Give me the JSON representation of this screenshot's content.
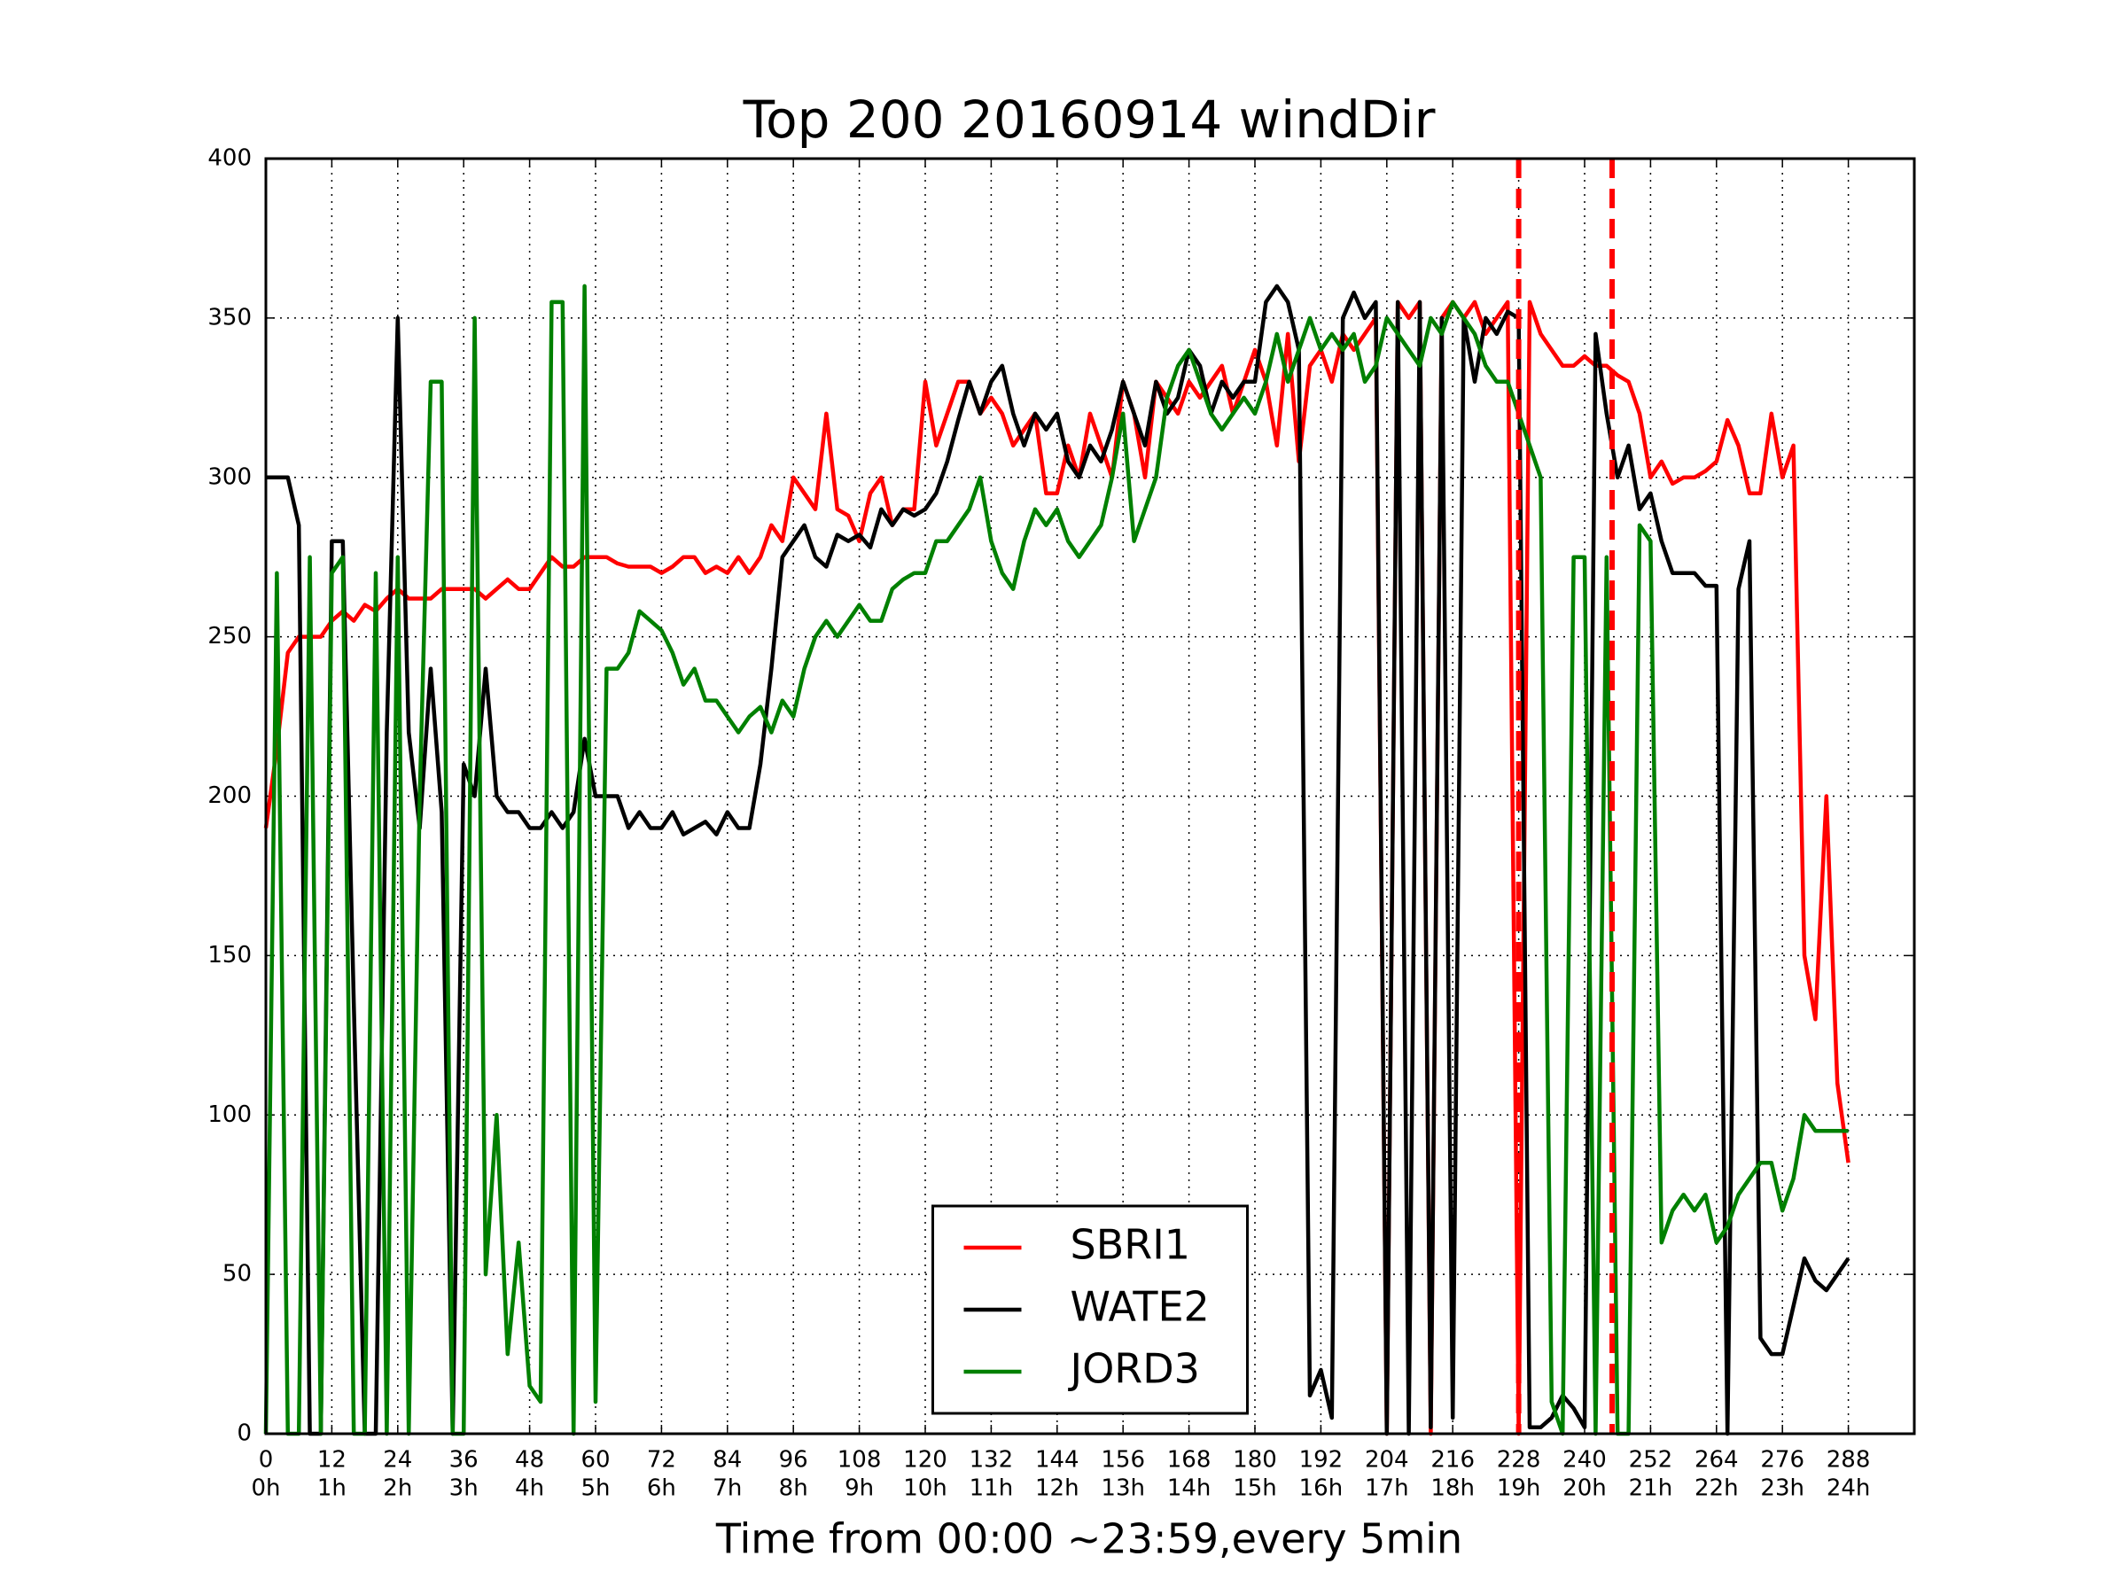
{
  "chart_data": {
    "type": "line",
    "title": "Top 200 20160914 windDir",
    "x_label": "Time from 00:00 ~23:59,every 5min",
    "x": [
      0,
      2,
      4,
      6,
      8,
      10,
      12,
      14,
      16,
      18,
      20,
      22,
      24,
      26,
      28,
      30,
      32,
      34,
      36,
      38,
      40,
      42,
      44,
      46,
      48,
      50,
      52,
      54,
      56,
      58,
      60,
      62,
      64,
      66,
      68,
      70,
      72,
      74,
      76,
      78,
      80,
      82,
      84,
      86,
      88,
      90,
      92,
      94,
      96,
      98,
      100,
      102,
      104,
      106,
      108,
      110,
      112,
      114,
      116,
      118,
      120,
      122,
      124,
      126,
      128,
      130,
      132,
      134,
      136,
      138,
      140,
      142,
      144,
      146,
      148,
      150,
      152,
      154,
      156,
      158,
      160,
      162,
      164,
      166,
      168,
      170,
      172,
      174,
      176,
      178,
      180,
      182,
      184,
      186,
      188,
      190,
      192,
      194,
      196,
      198,
      200,
      202,
      204,
      206,
      208,
      210,
      212,
      214,
      216,
      218,
      220,
      222,
      224,
      226,
      228,
      230,
      232,
      234,
      236,
      238,
      240,
      242,
      244,
      246,
      248,
      250,
      252,
      254,
      256,
      258,
      260,
      262,
      264,
      266,
      268,
      270,
      272,
      274,
      276,
      278,
      280,
      282,
      284,
      286,
      288
    ],
    "series": [
      {
        "name": "SBRI1",
        "color": "#ff0000",
        "values": [
          190,
          215,
          245,
          250,
          250,
          250,
          255,
          258,
          255,
          260,
          258,
          262,
          265,
          262,
          262,
          262,
          265,
          265,
          265,
          265,
          262,
          265,
          268,
          265,
          265,
          270,
          275,
          272,
          272,
          275,
          275,
          275,
          273,
          272,
          272,
          272,
          270,
          272,
          275,
          275,
          270,
          272,
          270,
          275,
          270,
          275,
          285,
          280,
          300,
          295,
          290,
          320,
          290,
          288,
          280,
          295,
          300,
          285,
          290,
          290,
          330,
          310,
          320,
          330,
          330,
          320,
          325,
          320,
          310,
          315,
          320,
          295,
          295,
          310,
          300,
          320,
          310,
          300,
          330,
          320,
          300,
          330,
          325,
          320,
          330,
          325,
          330,
          335,
          320,
          330,
          340,
          330,
          310,
          345,
          305,
          335,
          340,
          330,
          345,
          340,
          345,
          350,
          0,
          355,
          350,
          355,
          0,
          350,
          355,
          350,
          355,
          345,
          350,
          355,
          0,
          355,
          345,
          340,
          335,
          335,
          338,
          335,
          335,
          332,
          330,
          320,
          300,
          305,
          298,
          300,
          300,
          302,
          305,
          318,
          310,
          295,
          295,
          320,
          300,
          310,
          150,
          130,
          200,
          110,
          85
        ]
      },
      {
        "name": "WATE2",
        "color": "#000000",
        "values": [
          300,
          300,
          300,
          285,
          0,
          0,
          280,
          280,
          135,
          0,
          0,
          220,
          350,
          220,
          190,
          240,
          195,
          0,
          210,
          200,
          240,
          200,
          195,
          195,
          190,
          190,
          195,
          190,
          195,
          218,
          200,
          200,
          200,
          190,
          195,
          190,
          190,
          195,
          188,
          190,
          192,
          188,
          195,
          190,
          190,
          210,
          240,
          275,
          280,
          285,
          275,
          272,
          282,
          280,
          282,
          278,
          290,
          285,
          290,
          288,
          290,
          295,
          305,
          318,
          330,
          320,
          330,
          335,
          320,
          310,
          320,
          315,
          320,
          305,
          300,
          310,
          305,
          315,
          330,
          320,
          310,
          330,
          320,
          325,
          340,
          335,
          320,
          330,
          325,
          330,
          330,
          355,
          360,
          355,
          340,
          12,
          20,
          5,
          350,
          358,
          350,
          355,
          0,
          355,
          0,
          355,
          2,
          350,
          5,
          350,
          330,
          350,
          345,
          352,
          350,
          2,
          2,
          5,
          12,
          8,
          2,
          345,
          320,
          300,
          310,
          290,
          295,
          280,
          270,
          270,
          270,
          266,
          266,
          0,
          265,
          280,
          30,
          25,
          25,
          40,
          55,
          48,
          45,
          50,
          55
        ]
      },
      {
        "name": "JORD3",
        "color": "#008000",
        "values": [
          0,
          270,
          0,
          0,
          275,
          0,
          270,
          275,
          0,
          0,
          270,
          0,
          275,
          0,
          200,
          330,
          330,
          0,
          0,
          350,
          50,
          100,
          25,
          60,
          15,
          10,
          355,
          355,
          0,
          360,
          10,
          240,
          240,
          245,
          258,
          255,
          252,
          245,
          235,
          240,
          230,
          230,
          225,
          220,
          225,
          228,
          220,
          230,
          225,
          240,
          250,
          255,
          250,
          255,
          260,
          255,
          255,
          265,
          268,
          270,
          270,
          280,
          280,
          285,
          290,
          300,
          280,
          270,
          265,
          280,
          290,
          285,
          290,
          280,
          275,
          280,
          285,
          300,
          320,
          280,
          290,
          300,
          325,
          335,
          340,
          330,
          320,
          315,
          320,
          325,
          320,
          330,
          345,
          330,
          340,
          350,
          340,
          345,
          340,
          345,
          330,
          335,
          350,
          345,
          340,
          335,
          350,
          345,
          355,
          350,
          345,
          335,
          330,
          330,
          320,
          310,
          300,
          10,
          0,
          275,
          275,
          0,
          275,
          0,
          0,
          285,
          280,
          60,
          70,
          75,
          70,
          75,
          60,
          65,
          75,
          80,
          85,
          85,
          70,
          80,
          100,
          95,
          95,
          95,
          95
        ]
      }
    ],
    "vlines": [
      {
        "x": 228,
        "color": "#ff0000"
      },
      {
        "x": 245,
        "color": "#ff0000"
      }
    ],
    "xlim": [
      0,
      300
    ],
    "ylim": [
      0,
      400
    ],
    "xticks": [
      0,
      12,
      24,
      36,
      48,
      60,
      72,
      84,
      96,
      108,
      120,
      132,
      144,
      156,
      168,
      180,
      192,
      204,
      216,
      228,
      240,
      252,
      264,
      276,
      288
    ],
    "xtick_hour_labels": [
      "0h",
      "1h",
      "2h",
      "3h",
      "4h",
      "5h",
      "6h",
      "7h",
      "8h",
      "9h",
      "10h",
      "11h",
      "12h",
      "13h",
      "14h",
      "15h",
      "16h",
      "17h",
      "18h",
      "19h",
      "20h",
      "21h",
      "22h",
      "23h",
      "24h"
    ],
    "yticks": [
      0,
      50,
      100,
      150,
      200,
      250,
      300,
      350,
      400
    ],
    "grid": true,
    "legend": "lower center"
  }
}
